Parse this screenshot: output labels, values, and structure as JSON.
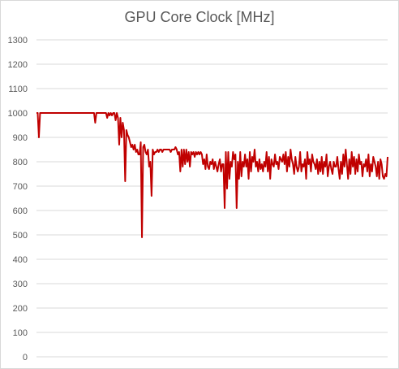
{
  "chart_data": {
    "type": "line",
    "title": "GPU Core Clock [MHz]",
    "xlabel": "",
    "ylabel": "",
    "ylim": [
      0,
      1300
    ],
    "yticks": [
      0,
      100,
      200,
      300,
      400,
      500,
      600,
      700,
      800,
      900,
      1000,
      1100,
      1200,
      1300
    ],
    "grid": true,
    "legend": "none",
    "series": [
      {
        "color": "#c00000",
        "values": [
          1000,
          1000,
          900,
          1000,
          1000,
          1000,
          1000,
          1000,
          1000,
          1000,
          1000,
          1000,
          1000,
          1000,
          1000,
          1000,
          1000,
          1000,
          1000,
          1000,
          1000,
          1000,
          1000,
          1000,
          1000,
          1000,
          1000,
          1000,
          1000,
          1000,
          1000,
          1000,
          1000,
          1000,
          1000,
          1000,
          1000,
          1000,
          1000,
          1000,
          1000,
          1000,
          1000,
          1000,
          1000,
          1000,
          1000,
          1000,
          1000,
          960,
          1000,
          1000,
          1000,
          1000,
          1000,
          1000,
          1000,
          1000,
          1000,
          980,
          1000,
          990,
          1000,
          990,
          1000,
          1000,
          970,
          1000,
          980,
          870,
          980,
          900,
          960,
          930,
          720,
          930,
          910,
          900,
          880,
          860,
          870,
          850,
          870,
          840,
          850,
          830,
          830,
          880,
          490,
          860,
          870,
          840,
          830,
          850,
          780,
          800,
          660,
          850,
          830,
          840,
          840,
          850,
          840,
          850,
          850,
          840,
          850,
          850,
          850,
          850,
          850,
          850,
          840,
          850,
          850,
          850,
          860,
          850,
          830,
          840,
          760,
          850,
          780,
          850,
          790,
          850,
          800,
          840,
          780,
          840,
          830,
          840,
          820,
          840,
          830,
          840,
          830,
          840,
          830,
          790,
          810,
          770,
          830,
          780,
          770,
          800,
          790,
          810,
          770,
          800,
          780,
          760,
          790,
          810,
          760,
          790,
          790,
          610,
          840,
          690,
          840,
          730,
          800,
          780,
          840,
          810,
          830,
          610,
          800,
          730,
          840,
          740,
          800,
          780,
          830,
          780,
          810,
          730,
          840,
          760,
          820,
          800,
          850,
          780,
          800,
          760,
          810,
          770,
          790,
          760,
          800,
          780,
          840,
          760,
          820,
          730,
          810,
          790,
          780,
          830,
          790,
          800,
          770,
          820,
          810,
          800,
          830,
          790,
          840,
          760,
          820,
          780,
          850,
          810,
          790,
          750,
          820,
          780,
          760,
          780,
          840,
          760,
          790,
          780,
          810,
          730,
          840,
          790,
          810,
          760,
          830,
          800,
          790,
          770,
          810,
          750,
          800,
          760,
          820,
          750,
          800,
          780,
          830,
          740,
          780,
          800,
          770,
          750,
          800,
          780,
          780,
          820,
          770,
          730,
          800,
          750,
          830,
          780,
          850,
          790,
          730,
          810,
          750,
          840,
          780,
          820,
          750,
          810,
          760,
          830,
          790,
          800,
          740,
          790,
          780,
          810,
          760,
          830,
          740,
          790,
          760,
          820,
          800,
          780,
          740,
          800,
          730,
          810,
          790,
          740,
          730,
          750,
          740,
          820
        ]
      }
    ]
  }
}
